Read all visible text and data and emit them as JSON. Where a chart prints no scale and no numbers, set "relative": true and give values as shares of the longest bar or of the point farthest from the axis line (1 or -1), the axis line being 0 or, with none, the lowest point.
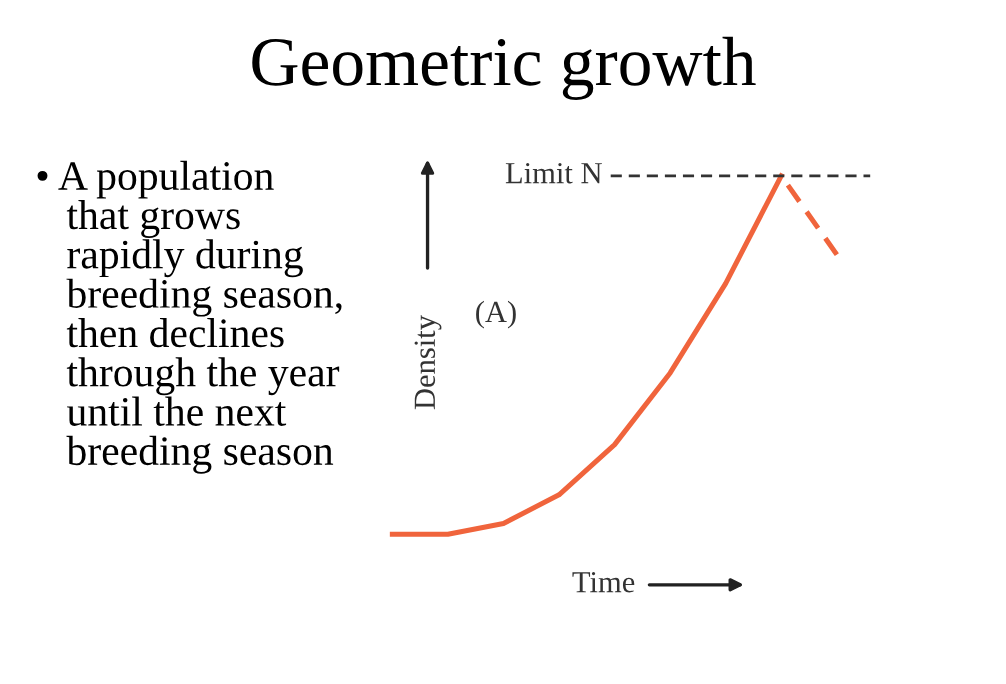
{
  "chart_data": {
    "type": "line",
    "title": "Geometric growth",
    "xlabel": "Time",
    "ylabel": "Density",
    "relative": true,
    "categories": [
      null,
      null,
      null,
      null,
      null,
      null,
      null,
      null,
      null
    ],
    "series": [
      {
        "color": "#f0643c",
        "line_style": "solid",
        "values": [
          0,
          0,
          0.03,
          0.11,
          0.25,
          0.45,
          0.7,
          1,
          null
        ]
      },
      {
        "color": "#f0643c",
        "line_style": "dashed",
        "values": [
          null,
          null,
          null,
          null,
          null,
          null,
          null,
          1,
          0.78
        ]
      }
    ],
    "ref_lines": [
      {
        "axis": "y",
        "value": 1,
        "label": "Limit N",
        "color": "#333333",
        "line_style": "dashed"
      }
    ],
    "annotations": [
      "(A)",
      "• A population\n   that grows\n   rapidly during\n   breeding season,\n   then declines\n   through the year\n   until the next\n   breeding season"
    ],
    "marker": "none",
    "legend": false
  }
}
